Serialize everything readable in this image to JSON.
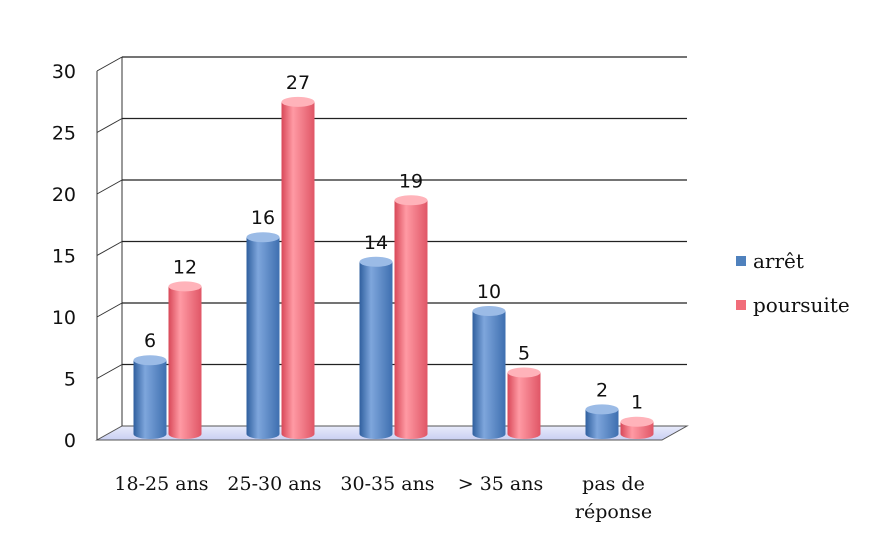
{
  "chart_data": {
    "type": "bar",
    "categories": [
      [
        "18-25 ans"
      ],
      [
        "25-30 ans"
      ],
      [
        "30-35 ans"
      ],
      [
        "> 35 ans"
      ],
      [
        "pas de",
        "réponse"
      ]
    ],
    "series": [
      {
        "name": "arrêt",
        "values": [
          6,
          16,
          14,
          10,
          2
        ],
        "color": "#4f81bd"
      },
      {
        "name": "poursuite",
        "values": [
          12,
          27,
          19,
          5,
          1
        ],
        "color": "#f16d7a"
      }
    ],
    "title": "",
    "xlabel": "",
    "ylabel": "",
    "ylim": [
      0,
      30
    ],
    "yticks": [
      0,
      5,
      10,
      15,
      20,
      25,
      30
    ],
    "grid": true,
    "legend_position": "right",
    "style": "3d-cylinder"
  }
}
